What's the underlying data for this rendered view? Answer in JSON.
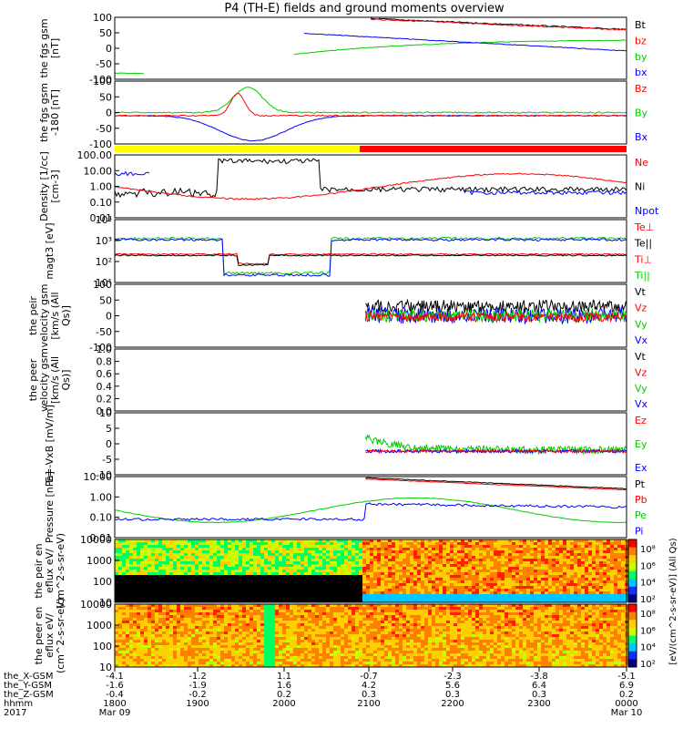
{
  "title": "P4 (TH-E) fields and ground moments overview",
  "colors": {
    "black": "#000000",
    "red": "#ff0000",
    "green": "#00cc00",
    "blue": "#0000ff",
    "yellow": "#ffff00"
  },
  "chart_data": {
    "type": "line",
    "time_axis": {
      "tick_labels": [
        "1800",
        "1900",
        "2000",
        "2100",
        "2200",
        "2300",
        "0000"
      ],
      "date_labels": {
        "start": "Mar 09",
        "end": "Mar 10"
      },
      "year": "2017",
      "row_labels": [
        "the_X-GSM",
        "the_Y-GSM",
        "the_Z-GSM",
        "hhmm",
        "2017"
      ],
      "x_gsm": [
        "-4.1",
        "-1.2",
        "1.1",
        "-0.7",
        "-2.3",
        "-3.8",
        "-5.1"
      ],
      "y_gsm": [
        "-1.6",
        "-1.9",
        "1.6",
        "4.2",
        "5.6",
        "6.4",
        "6.9"
      ],
      "z_gsm": [
        "-0.4",
        "-0.2",
        "0.2",
        "0.3",
        "0.3",
        "0.3",
        "0.2"
      ]
    },
    "panels": [
      {
        "ylabel": "the fgs gsm [nT]",
        "ticks": [
          "100",
          "50",
          "0",
          "-50",
          "-100"
        ],
        "legend": [
          "Bt",
          "bz",
          "by",
          "bx"
        ],
        "legend_colors": [
          "#000000",
          "#ff0000",
          "#00cc00",
          "#0000ff"
        ]
      },
      {
        "ylabel": "the fgs gsm -180 [nT]",
        "ticks": [
          "100",
          "50",
          "0",
          "-50",
          "-100"
        ],
        "legend": [
          "Bz",
          "By",
          "Bx"
        ],
        "legend_colors": [
          "#ff0000",
          "#00cc00",
          "#0000ff"
        ]
      },
      {
        "ylabel": "Density [1/cc] [cm-3]",
        "ticks": [
          "100.00",
          "10.00",
          "1.00",
          "0.10",
          "0.01"
        ],
        "legend": [
          "Ne",
          "Ni",
          "Npot"
        ],
        "legend_colors": [
          "#ff0000",
          "#000000",
          "#0000ff"
        ]
      },
      {
        "ylabel": "magt3 [eV]",
        "ticks": [
          "10⁴",
          "10³",
          "10²",
          "10¹"
        ],
        "legend": [
          "Te⊥",
          "Te||",
          "Ti⊥",
          "Ti||"
        ],
        "legend_colors": [
          "#ff0000",
          "#000000",
          "#ff0000",
          "#00cc00"
        ]
      },
      {
        "ylabel": "the peir velocity gsm [km/s (All Qs)]",
        "ticks": [
          "100",
          "50",
          "0",
          "-50",
          "-100"
        ],
        "legend": [
          "Vt",
          "Vz",
          "Vy",
          "Vx"
        ],
        "legend_colors": [
          "#000000",
          "#ff0000",
          "#00cc00",
          "#0000ff"
        ]
      },
      {
        "ylabel": "the peer velocity gsm [km/s (All Qs)]",
        "ticks": [
          "1.0",
          "0.8",
          "0.6",
          "0.4",
          "0.2",
          "0.0"
        ],
        "legend": [
          "Vt",
          "Vz",
          "Vy",
          "Vx"
        ],
        "legend_colors": [
          "#000000",
          "#ff0000",
          "#00cc00",
          "#0000ff"
        ]
      },
      {
        "ylabel": "E=-VxB [mV/m]",
        "ticks": [
          "10",
          "5",
          "0",
          "-5",
          "-10"
        ],
        "legend": [
          "Ez",
          "Ey",
          "Ex"
        ],
        "legend_colors": [
          "#ff0000",
          "#00cc00",
          "#0000ff"
        ]
      },
      {
        "ylabel": "Pressure [nPa]",
        "ticks": [
          "10.00",
          "1.00",
          "0.10",
          "0.01"
        ],
        "legend": [
          "Pt",
          "Pb",
          "Pe",
          "Pi"
        ],
        "legend_colors": [
          "#000000",
          "#ff0000",
          "#00cc00",
          "#0000ff"
        ]
      },
      {
        "ylabel": "the peir en eflux eV/ (cm^2-s-sr-eV)",
        "ticks": [
          "10000",
          "1000",
          "100",
          "10"
        ],
        "colorbar_ticks": [
          "10⁸",
          "10⁶",
          "10⁴",
          "10²"
        ]
      },
      {
        "ylabel": "the peer en eflux eV/ (cm^2-s-sr-eV)",
        "ticks": [
          "10000",
          "1000",
          "100",
          "10"
        ],
        "colorbar_ticks": [
          "10⁸",
          "10⁶",
          "10⁴",
          "10²"
        ]
      }
    ],
    "colorbar_label": "[eV/(cm^2-s-sr-eV)] (All Qs)"
  }
}
